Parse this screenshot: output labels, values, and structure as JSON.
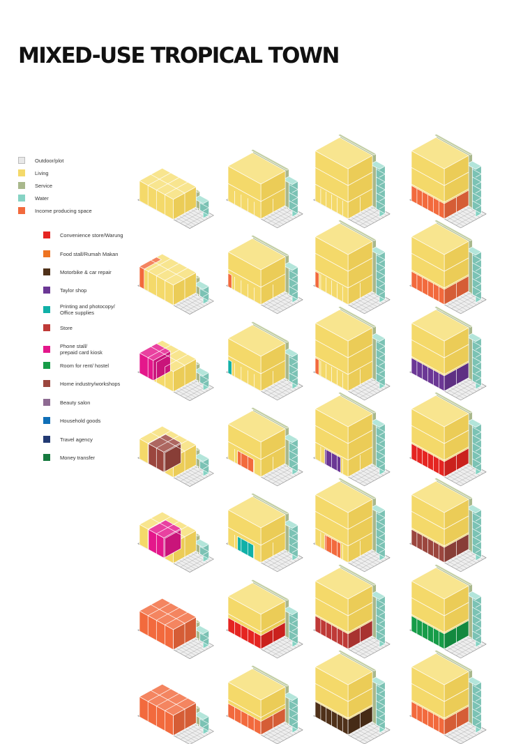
{
  "title": "MIXED-USE TROPICAL TOWN",
  "colors": {
    "living": "#f4d96a",
    "living_right": "#ebcc57",
    "living_top": "#f8e58f",
    "service": "#a9b88c",
    "service_top": "#c3cfa6",
    "water": "#86d3c4",
    "water_top": "#b3e5da",
    "plot": "#eeeeee",
    "grid_line": "#999999"
  },
  "legend_main": [
    {
      "label": "Outdoor/plot",
      "color": "#e8e8e8"
    },
    {
      "label": "Living",
      "color": "#f4d96a"
    },
    {
      "label": "Service",
      "color": "#a9b88c"
    },
    {
      "label": "Water",
      "color": "#86d3c4"
    },
    {
      "label": "Income producing space",
      "color": "#f26a3d"
    }
  ],
  "legend_uses": [
    {
      "label": "Convenience store/Warung",
      "color": "#e52521"
    },
    {
      "label": "Food stall/Rumah Makan",
      "color": "#ee7422"
    },
    {
      "label": "Motorbike & car repair",
      "color": "#4f3119"
    },
    {
      "label": "Taylor shop",
      "color": "#6b3795"
    },
    {
      "label": "Printing and photocopy/\nOffice supplies",
      "color": "#10b0a7"
    },
    {
      "label": "Store",
      "color": "#bf3a37"
    },
    {
      "label": "Phone stall/\nprepaid card kiosk",
      "color": "#e4178b"
    },
    {
      "label": "Room for rent/ hostel",
      "color": "#169c48"
    },
    {
      "label": "Home industry/workshops",
      "color": "#9b463e"
    },
    {
      "label": "Beauty salon",
      "color": "#8e6a92"
    },
    {
      "label": "Household goods",
      "color": "#0f6fb7"
    },
    {
      "label": "Travel agency",
      "color": "#223a73"
    },
    {
      "label": "Money transfer",
      "color": "#177a3f"
    }
  ],
  "diagram_grid": {
    "columns": 4,
    "rows": 7,
    "cells": [
      [
        {
          "stories": 1,
          "shop": null,
          "shop_part": "none"
        },
        {
          "stories": 2,
          "shop": null,
          "shop_part": "none"
        },
        {
          "stories": 3,
          "shop": null,
          "shop_part": "none"
        },
        {
          "stories": 3,
          "shop": "#f26a3d",
          "shop_part": "front"
        }
      ],
      [
        {
          "stories": 1,
          "shop": "#f26a3d",
          "shop_part": "corner"
        },
        {
          "stories": 2,
          "shop": "#f26a3d",
          "shop_part": "corner"
        },
        {
          "stories": 3,
          "shop": "#f26a3d",
          "shop_part": "corner"
        },
        {
          "stories": 3,
          "shop": "#f26a3d",
          "shop_part": "front"
        }
      ],
      [
        {
          "stories": 1,
          "shop": "#e4178b",
          "shop_part": "left"
        },
        {
          "stories": 2,
          "shop": "#10b0a7",
          "shop_part": "corner"
        },
        {
          "stories": 3,
          "shop": "#f26a3d",
          "shop_part": "corner"
        },
        {
          "stories": 3,
          "shop": "#6b3795",
          "shop_part": "front"
        }
      ],
      [
        {
          "stories": 1,
          "shop": "#9b463e",
          "shop_part": "middle"
        },
        {
          "stories": 2,
          "shop": "#f26a3d",
          "shop_part": "middle"
        },
        {
          "stories": 3,
          "shop": "#6b3795",
          "shop_part": "middle"
        },
        {
          "stories": 3,
          "shop": "#e52521",
          "shop_part": "front"
        }
      ],
      [
        {
          "stories": 1,
          "shop": "#e4178b",
          "shop_part": "middle"
        },
        {
          "stories": 2,
          "shop": "#10b0a7",
          "shop_part": "middle"
        },
        {
          "stories": 3,
          "shop": "#f26a3d",
          "shop_part": "middle"
        },
        {
          "stories": 3,
          "shop": "#9b463e",
          "shop_part": "front"
        }
      ],
      [
        {
          "stories": 1,
          "shop": "#f26a3d",
          "shop_part": "front"
        },
        {
          "stories": 2,
          "shop": "#e52521",
          "shop_part": "front"
        },
        {
          "stories": 3,
          "shop": "#bf3a37",
          "shop_part": "front"
        },
        {
          "stories": 3,
          "shop": "#169c48",
          "shop_part": "front"
        }
      ],
      [
        {
          "stories": 1,
          "shop": "#f26a3d",
          "shop_part": "full"
        },
        {
          "stories": 2,
          "shop": "#f26a3d",
          "shop_part": "front"
        },
        {
          "stories": 3,
          "shop": "#4f3119",
          "shop_part": "front"
        },
        {
          "stories": 3,
          "shop": "#f26a3d",
          "shop_part": "front"
        }
      ]
    ]
  }
}
